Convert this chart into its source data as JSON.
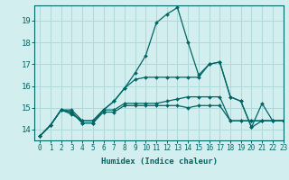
{
  "title": "",
  "xlabel": "Humidex (Indice chaleur)",
  "ylabel": "",
  "background_color": "#d3eeee",
  "grid_color": "#b0d8d8",
  "line_color": "#006666",
  "xlim": [
    -0.5,
    23
  ],
  "ylim": [
    13.5,
    19.7
  ],
  "yticks": [
    14,
    15,
    16,
    17,
    18,
    19
  ],
  "xticks": [
    0,
    1,
    2,
    3,
    4,
    5,
    6,
    7,
    8,
    9,
    10,
    11,
    12,
    13,
    14,
    15,
    16,
    17,
    18,
    19,
    20,
    21,
    22,
    23
  ],
  "series": [
    {
      "x": [
        0,
        1,
        2,
        3,
        4,
        5,
        6,
        7,
        8,
        9,
        10,
        11,
        12,
        13,
        14,
        15,
        16,
        17,
        18,
        19,
        20,
        21,
        22,
        23
      ],
      "y": [
        13.7,
        14.2,
        14.9,
        14.8,
        14.3,
        14.3,
        14.8,
        14.8,
        15.1,
        15.1,
        15.1,
        15.1,
        15.1,
        15.1,
        15.0,
        15.1,
        15.1,
        15.1,
        14.4,
        14.4,
        14.4,
        14.4,
        14.4,
        14.4
      ]
    },
    {
      "x": [
        0,
        1,
        2,
        3,
        4,
        5,
        6,
        7,
        8,
        9,
        10,
        11,
        12,
        13,
        14,
        15,
        16,
        17,
        18,
        19,
        20,
        21,
        22,
        23
      ],
      "y": [
        13.7,
        14.2,
        14.9,
        14.8,
        14.3,
        14.3,
        14.9,
        14.9,
        15.2,
        15.2,
        15.2,
        15.2,
        15.3,
        15.4,
        15.5,
        15.5,
        15.5,
        15.5,
        14.4,
        14.4,
        14.4,
        14.4,
        14.4,
        14.4
      ]
    },
    {
      "x": [
        0,
        1,
        2,
        3,
        4,
        5,
        6,
        7,
        8,
        9,
        10,
        11,
        12,
        13,
        14,
        15,
        16,
        17,
        18,
        19,
        20,
        21,
        22,
        23
      ],
      "y": [
        13.7,
        14.2,
        14.9,
        14.9,
        14.4,
        14.4,
        14.9,
        15.3,
        15.9,
        16.3,
        16.4,
        16.4,
        16.4,
        16.4,
        16.4,
        16.4,
        17.0,
        17.1,
        15.5,
        15.3,
        14.1,
        14.4,
        14.4,
        14.4
      ]
    },
    {
      "x": [
        0,
        1,
        2,
        3,
        4,
        5,
        6,
        7,
        8,
        9,
        10,
        11,
        12,
        13,
        14,
        15,
        16,
        17,
        18,
        19,
        20,
        21,
        22,
        23
      ],
      "y": [
        13.7,
        14.2,
        14.9,
        14.7,
        14.4,
        14.4,
        14.9,
        15.3,
        15.9,
        16.6,
        17.4,
        18.9,
        19.3,
        19.6,
        18.0,
        16.5,
        17.0,
        17.1,
        15.5,
        15.3,
        14.1,
        15.2,
        14.4,
        14.4
      ]
    }
  ]
}
